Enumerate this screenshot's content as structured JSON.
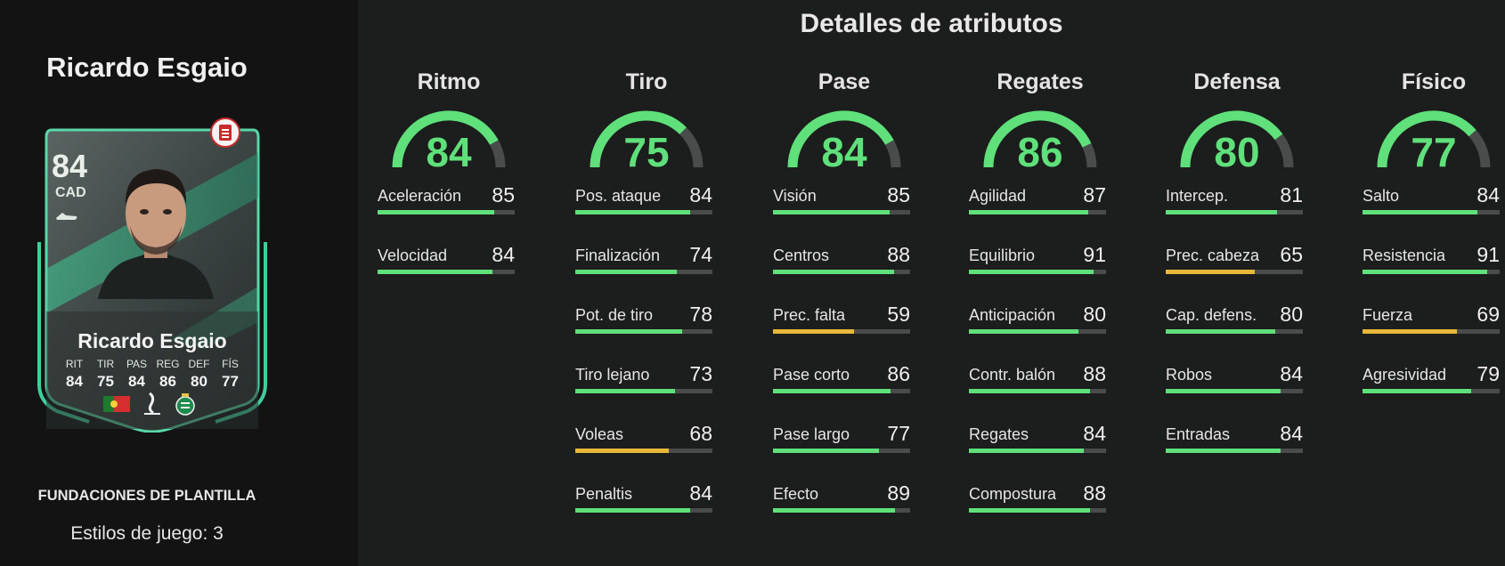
{
  "player": {
    "name": "Ricardo Esgaio",
    "card_name": "Ricardo Esgaio",
    "rating": "84",
    "position": "CAD",
    "card_stats": [
      {
        "label": "RIT",
        "value": "84"
      },
      {
        "label": "TIR",
        "value": "75"
      },
      {
        "label": "PAS",
        "value": "84"
      },
      {
        "label": "REG",
        "value": "86"
      },
      {
        "label": "DEF",
        "value": "80"
      },
      {
        "label": "FÍS",
        "value": "77"
      }
    ],
    "nation": "portugal-flag-icon",
    "league": "liga-portugal-logo",
    "club": "sporting-cp-crest-icon",
    "accent_color": "#3fcf9a"
  },
  "left": {
    "category": "FUNDACIONES DE PLANTILLA",
    "playstyles": "Estilos de juego: 3"
  },
  "details_title": "Detalles de atributos",
  "colors": {
    "good": "#5fe07a",
    "average": "#e8b83a",
    "track": "#4a4c4c"
  },
  "attributes": [
    {
      "title": "Ritmo",
      "value": 84,
      "value_text": "84",
      "stats": [
        {
          "name": "Aceleración",
          "value": 85,
          "value_text": "85"
        },
        {
          "name": "Velocidad",
          "value": 84,
          "value_text": "84"
        }
      ]
    },
    {
      "title": "Tiro",
      "value": 75,
      "value_text": "75",
      "stats": [
        {
          "name": "Pos. ataque",
          "value": 84,
          "value_text": "84"
        },
        {
          "name": "Finalización",
          "value": 74,
          "value_text": "74"
        },
        {
          "name": "Pot. de tiro",
          "value": 78,
          "value_text": "78"
        },
        {
          "name": "Tiro lejano",
          "value": 73,
          "value_text": "73"
        },
        {
          "name": "Voleas",
          "value": 68,
          "value_text": "68"
        },
        {
          "name": "Penaltis",
          "value": 84,
          "value_text": "84"
        }
      ]
    },
    {
      "title": "Pase",
      "value": 84,
      "value_text": "84",
      "stats": [
        {
          "name": "Visión",
          "value": 85,
          "value_text": "85"
        },
        {
          "name": "Centros",
          "value": 88,
          "value_text": "88"
        },
        {
          "name": "Prec. falta",
          "value": 59,
          "value_text": "59"
        },
        {
          "name": "Pase corto",
          "value": 86,
          "value_text": "86"
        },
        {
          "name": "Pase largo",
          "value": 77,
          "value_text": "77"
        },
        {
          "name": "Efecto",
          "value": 89,
          "value_text": "89"
        }
      ]
    },
    {
      "title": "Regates",
      "value": 86,
      "value_text": "86",
      "stats": [
        {
          "name": "Agilidad",
          "value": 87,
          "value_text": "87"
        },
        {
          "name": "Equilibrio",
          "value": 91,
          "value_text": "91"
        },
        {
          "name": "Anticipación",
          "value": 80,
          "value_text": "80"
        },
        {
          "name": "Contr. balón",
          "value": 88,
          "value_text": "88"
        },
        {
          "name": "Regates",
          "value": 84,
          "value_text": "84"
        },
        {
          "name": "Compostura",
          "value": 88,
          "value_text": "88"
        }
      ]
    },
    {
      "title": "Defensa",
      "value": 80,
      "value_text": "80",
      "stats": [
        {
          "name": "Intercep.",
          "value": 81,
          "value_text": "81"
        },
        {
          "name": "Prec. cabeza",
          "value": 65,
          "value_text": "65"
        },
        {
          "name": "Cap. defens.",
          "value": 80,
          "value_text": "80"
        },
        {
          "name": "Robos",
          "value": 84,
          "value_text": "84"
        },
        {
          "name": "Entradas",
          "value": 84,
          "value_text": "84"
        }
      ]
    },
    {
      "title": "Físico",
      "value": 77,
      "value_text": "77",
      "stats": [
        {
          "name": "Salto",
          "value": 84,
          "value_text": "84"
        },
        {
          "name": "Resistencia",
          "value": 91,
          "value_text": "91"
        },
        {
          "name": "Fuerza",
          "value": 69,
          "value_text": "69"
        },
        {
          "name": "Agresividad",
          "value": 79,
          "value_text": "79"
        }
      ]
    }
  ]
}
